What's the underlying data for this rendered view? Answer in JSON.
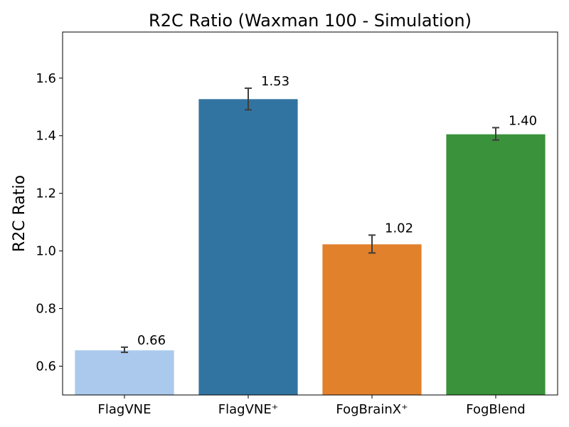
{
  "chart_data": {
    "type": "bar",
    "title": "R2C Ratio (Waxman 100 - Simulation)",
    "xlabel": "",
    "ylabel": "R2C Ratio",
    "ylim": [
      0.5,
      1.76
    ],
    "yticks": [
      0.6,
      0.8,
      1.0,
      1.2,
      1.4,
      1.6
    ],
    "ytick_labels": [
      "0.6",
      "0.8",
      "1.0",
      "1.2",
      "1.4",
      "1.6"
    ],
    "categories": [
      "FlagVNE",
      "FlagVNE⁺",
      "FogBrainX⁺",
      "FogBlend"
    ],
    "values": [
      0.655,
      1.527,
      1.023,
      1.405
    ],
    "error_low": [
      0.648,
      1.49,
      0.993,
      1.385
    ],
    "error_high": [
      0.666,
      1.565,
      1.055,
      1.428
    ],
    "data_labels": [
      "0.66",
      "1.53",
      "1.02",
      "1.40"
    ],
    "colors": [
      "#aac9ec",
      "#3274a1",
      "#e1812c",
      "#3a923a"
    ],
    "grid": false,
    "legend": "none"
  }
}
